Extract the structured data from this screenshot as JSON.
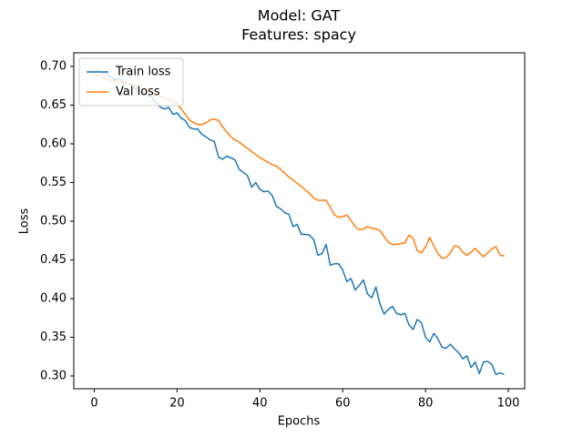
{
  "chart_data": {
    "type": "line",
    "title": "Model: GAT",
    "subtitle": "Features: spacy",
    "x_label": "Epochs",
    "y_label": "Loss",
    "x": [
      0,
      1,
      2,
      3,
      4,
      5,
      6,
      7,
      8,
      9,
      10,
      11,
      12,
      13,
      14,
      15,
      16,
      17,
      18,
      19,
      20,
      21,
      22,
      23,
      24,
      25,
      26,
      27,
      28,
      29,
      30,
      31,
      32,
      33,
      34,
      35,
      36,
      37,
      38,
      39,
      40,
      41,
      42,
      43,
      44,
      45,
      46,
      47,
      48,
      49,
      50,
      51,
      52,
      53,
      54,
      55,
      56,
      57,
      58,
      59,
      60,
      61,
      62,
      63,
      64,
      65,
      66,
      67,
      68,
      69,
      70,
      71,
      72,
      73,
      74,
      75,
      76,
      77,
      78,
      79,
      80,
      81,
      82,
      83,
      84,
      85,
      86,
      87,
      88,
      89,
      90,
      91,
      92,
      93,
      94,
      95,
      96,
      97,
      98,
      99
    ],
    "series": [
      {
        "name": "Train loss",
        "color": "#1f77b4",
        "values": [
          0.695,
          0.693,
          0.692,
          0.69,
          0.686,
          0.683,
          0.684,
          0.68,
          0.678,
          0.676,
          0.671,
          0.668,
          0.666,
          0.662,
          0.66,
          0.653,
          0.647,
          0.645,
          0.647,
          0.638,
          0.64,
          0.633,
          0.63,
          0.621,
          0.619,
          0.619,
          0.612,
          0.609,
          0.605,
          0.603,
          0.583,
          0.58,
          0.584,
          0.582,
          0.579,
          0.567,
          0.563,
          0.559,
          0.544,
          0.55,
          0.541,
          0.538,
          0.539,
          0.533,
          0.519,
          0.516,
          0.511,
          0.509,
          0.493,
          0.496,
          0.483,
          0.483,
          0.482,
          0.476,
          0.456,
          0.458,
          0.47,
          0.443,
          0.445,
          0.445,
          0.437,
          0.422,
          0.426,
          0.411,
          0.417,
          0.424,
          0.406,
          0.401,
          0.415,
          0.393,
          0.38,
          0.386,
          0.39,
          0.381,
          0.379,
          0.381,
          0.366,
          0.36,
          0.373,
          0.369,
          0.35,
          0.344,
          0.355,
          0.348,
          0.337,
          0.336,
          0.341,
          0.335,
          0.33,
          0.322,
          0.326,
          0.311,
          0.318,
          0.303,
          0.318,
          0.319,
          0.315,
          0.302,
          0.304,
          0.302
        ]
      },
      {
        "name": "Val loss",
        "color": "#ff7f0e",
        "values": [
          0.69,
          0.688,
          0.686,
          0.684,
          0.682,
          0.681,
          0.68,
          0.679,
          0.678,
          0.677,
          0.675,
          0.672,
          0.67,
          0.668,
          0.666,
          0.664,
          0.661,
          0.659,
          0.657,
          0.655,
          0.652,
          0.645,
          0.638,
          0.631,
          0.627,
          0.625,
          0.625,
          0.627,
          0.631,
          0.632,
          0.63,
          0.622,
          0.615,
          0.609,
          0.605,
          0.602,
          0.598,
          0.594,
          0.59,
          0.586,
          0.582,
          0.579,
          0.576,
          0.573,
          0.571,
          0.567,
          0.562,
          0.557,
          0.553,
          0.549,
          0.545,
          0.54,
          0.536,
          0.53,
          0.527,
          0.527,
          0.527,
          0.518,
          0.508,
          0.505,
          0.506,
          0.508,
          0.501,
          0.493,
          0.489,
          0.49,
          0.493,
          0.491,
          0.49,
          0.488,
          0.48,
          0.473,
          0.47,
          0.47,
          0.471,
          0.472,
          0.482,
          0.478,
          0.462,
          0.459,
          0.467,
          0.479,
          0.468,
          0.458,
          0.452,
          0.453,
          0.459,
          0.468,
          0.467,
          0.46,
          0.456,
          0.46,
          0.465,
          0.459,
          0.454,
          0.459,
          0.464,
          0.467,
          0.456,
          0.455
        ]
      }
    ],
    "xlim": [
      -4.95,
      103.95
    ],
    "ylim": [
      0.2835,
      0.7176
    ],
    "xticks": [
      0,
      20,
      40,
      60,
      80,
      100
    ],
    "yticks": [
      {
        "value": 0.3,
        "label": "0.30"
      },
      {
        "value": 0.35,
        "label": "0.35"
      },
      {
        "value": 0.4,
        "label": "0.40"
      },
      {
        "value": 0.45,
        "label": "0.45"
      },
      {
        "value": 0.5,
        "label": "0.50"
      },
      {
        "value": 0.55,
        "label": "0.55"
      },
      {
        "value": 0.6,
        "label": "0.60"
      },
      {
        "value": 0.65,
        "label": "0.65"
      },
      {
        "value": 0.7,
        "label": "0.70"
      }
    ],
    "grid": false,
    "legend": "upper left"
  }
}
